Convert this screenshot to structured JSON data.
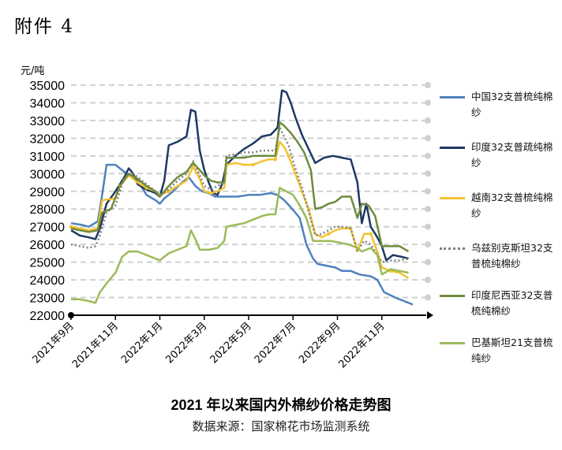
{
  "header": {
    "label": "附件 4"
  },
  "chart_data": {
    "type": "line",
    "title": "2021 年以来国内外棉纱价格走势图",
    "subtitle": "数据来源：国家棉花市场监测系统",
    "ylabel": "元/吨",
    "ylim": [
      22000,
      35000
    ],
    "yticks": [
      22000,
      23000,
      24000,
      25000,
      26000,
      27000,
      28000,
      29000,
      30000,
      31000,
      32000,
      33000,
      34000,
      35000
    ],
    "xlim": [
      0,
      16
    ],
    "xticks": [
      {
        "x": 0,
        "label": "2021年9月"
      },
      {
        "x": 2,
        "label": "2021年11月"
      },
      {
        "x": 4,
        "label": "2022年1月"
      },
      {
        "x": 6,
        "label": "2022年3月"
      },
      {
        "x": 8,
        "label": "2022年5月"
      },
      {
        "x": 10,
        "label": "2022年7月"
      },
      {
        "x": 12,
        "label": "2022年9月"
      },
      {
        "x": 14,
        "label": "2022年11月"
      }
    ],
    "grid": "horizontal-dashed",
    "legend_position": "right",
    "series": [
      {
        "name": "中国32支普梳纯棉纱",
        "color": "#4f81bd",
        "style": "solid",
        "points": [
          [
            0,
            27200
          ],
          [
            0.5,
            27100
          ],
          [
            0.8,
            27000
          ],
          [
            1.2,
            27300
          ],
          [
            1.4,
            28800
          ],
          [
            1.6,
            30500
          ],
          [
            2.0,
            30500
          ],
          [
            2.2,
            30300
          ],
          [
            2.6,
            29900
          ],
          [
            3.0,
            29600
          ],
          [
            3.4,
            28800
          ],
          [
            3.8,
            28500
          ],
          [
            4.0,
            28300
          ],
          [
            4.2,
            28600
          ],
          [
            4.6,
            29000
          ],
          [
            5.0,
            29500
          ],
          [
            5.3,
            29800
          ],
          [
            5.6,
            29300
          ],
          [
            5.9,
            29000
          ],
          [
            6.2,
            28900
          ],
          [
            6.5,
            28700
          ],
          [
            7.0,
            28700
          ],
          [
            7.5,
            28700
          ],
          [
            8.0,
            28800
          ],
          [
            8.5,
            28800
          ],
          [
            9.0,
            28900
          ],
          [
            9.3,
            28800
          ],
          [
            9.6,
            28500
          ],
          [
            9.9,
            28100
          ],
          [
            10.3,
            27500
          ],
          [
            10.6,
            26000
          ],
          [
            10.9,
            25200
          ],
          [
            11.1,
            24900
          ],
          [
            11.5,
            24800
          ],
          [
            11.9,
            24700
          ],
          [
            12.2,
            24500
          ],
          [
            12.6,
            24500
          ],
          [
            13.0,
            24300
          ],
          [
            13.5,
            24200
          ],
          [
            13.8,
            24000
          ],
          [
            14.1,
            23300
          ],
          [
            14.6,
            23000
          ],
          [
            15.0,
            22800
          ],
          [
            15.4,
            22600
          ]
        ]
      },
      {
        "name": "印度32支普疏纯棉纱",
        "color": "#1f3864",
        "style": "solid",
        "points": [
          [
            0,
            26800
          ],
          [
            0.4,
            26500
          ],
          [
            0.8,
            26400
          ],
          [
            1.1,
            26300
          ],
          [
            1.3,
            26900
          ],
          [
            1.6,
            28300
          ],
          [
            2.0,
            29000
          ],
          [
            2.4,
            29800
          ],
          [
            2.6,
            30300
          ],
          [
            2.8,
            30000
          ],
          [
            3.0,
            29400
          ],
          [
            3.4,
            29100
          ],
          [
            3.8,
            28900
          ],
          [
            4.0,
            28700
          ],
          [
            4.2,
            29600
          ],
          [
            4.4,
            31600
          ],
          [
            4.8,
            31800
          ],
          [
            5.2,
            32100
          ],
          [
            5.4,
            33600
          ],
          [
            5.6,
            33500
          ],
          [
            5.8,
            31300
          ],
          [
            6.0,
            30200
          ],
          [
            6.2,
            29500
          ],
          [
            6.4,
            28900
          ],
          [
            6.6,
            28800
          ],
          [
            6.8,
            29400
          ],
          [
            7.0,
            30500
          ],
          [
            7.4,
            31000
          ],
          [
            7.8,
            31400
          ],
          [
            8.2,
            31700
          ],
          [
            8.6,
            32100
          ],
          [
            9.0,
            32200
          ],
          [
            9.3,
            32600
          ],
          [
            9.5,
            34700
          ],
          [
            9.7,
            34600
          ],
          [
            9.9,
            34000
          ],
          [
            10.1,
            33200
          ],
          [
            10.4,
            32200
          ],
          [
            10.7,
            31400
          ],
          [
            11.0,
            30600
          ],
          [
            11.4,
            30900
          ],
          [
            11.8,
            31000
          ],
          [
            12.2,
            30900
          ],
          [
            12.6,
            30800
          ],
          [
            12.9,
            29500
          ],
          [
            13.1,
            27200
          ],
          [
            13.3,
            28300
          ],
          [
            13.5,
            27000
          ],
          [
            13.8,
            26400
          ],
          [
            14.0,
            25900
          ],
          [
            14.2,
            25100
          ],
          [
            14.5,
            25400
          ],
          [
            14.9,
            25300
          ],
          [
            15.2,
            25200
          ]
        ]
      },
      {
        "name": "越南32支普梳纯棉纱",
        "color": "#f1c232",
        "style": "solid-markers",
        "points": [
          [
            0,
            27000
          ],
          [
            0.4,
            26900
          ],
          [
            0.8,
            26800
          ],
          [
            1.2,
            26900
          ],
          [
            1.4,
            28500
          ],
          [
            2.0,
            28600
          ],
          [
            2.2,
            29300
          ],
          [
            2.6,
            29900
          ],
          [
            3.0,
            29500
          ],
          [
            3.4,
            29200
          ],
          [
            3.8,
            29000
          ],
          [
            4.0,
            28800
          ],
          [
            4.4,
            29000
          ],
          [
            4.8,
            29300
          ],
          [
            5.2,
            29600
          ],
          [
            5.5,
            30400
          ],
          [
            5.8,
            29700
          ],
          [
            6.0,
            29000
          ],
          [
            6.3,
            28900
          ],
          [
            6.6,
            29000
          ],
          [
            6.9,
            29200
          ],
          [
            7.0,
            30500
          ],
          [
            7.4,
            30600
          ],
          [
            7.8,
            30500
          ],
          [
            8.2,
            30500
          ],
          [
            8.6,
            30700
          ],
          [
            8.9,
            30800
          ],
          [
            9.2,
            30800
          ],
          [
            9.4,
            31800
          ],
          [
            9.6,
            31500
          ],
          [
            9.8,
            31000
          ],
          [
            10.1,
            30000
          ],
          [
            10.4,
            29000
          ],
          [
            10.7,
            28000
          ],
          [
            11.0,
            26600
          ],
          [
            11.3,
            26400
          ],
          [
            11.6,
            26600
          ],
          [
            11.9,
            26800
          ],
          [
            12.2,
            26900
          ],
          [
            12.6,
            26900
          ],
          [
            12.9,
            25600
          ],
          [
            13.2,
            26600
          ],
          [
            13.5,
            26600
          ],
          [
            13.8,
            25600
          ],
          [
            14.0,
            24700
          ],
          [
            14.4,
            24500
          ],
          [
            14.8,
            24400
          ],
          [
            15.2,
            24100
          ]
        ]
      },
      {
        "name": "乌兹别克斯坦32支普梳纯棉纱",
        "color": "#7f7f7f",
        "style": "dotted",
        "points": [
          [
            0,
            26000
          ],
          [
            0.4,
            25900
          ],
          [
            0.8,
            25800
          ],
          [
            1.1,
            25900
          ],
          [
            1.3,
            26500
          ],
          [
            1.6,
            27800
          ],
          [
            2.0,
            28200
          ],
          [
            2.4,
            29800
          ],
          [
            2.8,
            30000
          ],
          [
            3.2,
            29600
          ],
          [
            3.6,
            29200
          ],
          [
            4.0,
            28800
          ],
          [
            4.4,
            29100
          ],
          [
            4.8,
            29600
          ],
          [
            5.2,
            30000
          ],
          [
            5.5,
            30700
          ],
          [
            5.8,
            29900
          ],
          [
            6.0,
            29300
          ],
          [
            6.3,
            29100
          ],
          [
            6.6,
            29300
          ],
          [
            6.9,
            29500
          ],
          [
            7.0,
            31000
          ],
          [
            7.4,
            31100
          ],
          [
            7.8,
            31200
          ],
          [
            8.2,
            31200
          ],
          [
            8.6,
            31300
          ],
          [
            8.9,
            31300
          ],
          [
            9.2,
            31300
          ],
          [
            9.4,
            32600
          ],
          [
            9.6,
            32100
          ],
          [
            9.8,
            31600
          ],
          [
            10.1,
            30300
          ],
          [
            10.4,
            29200
          ],
          [
            10.7,
            27900
          ],
          [
            11.0,
            26500
          ],
          [
            11.3,
            26600
          ],
          [
            11.6,
            26800
          ],
          [
            11.9,
            27000
          ],
          [
            12.2,
            27000
          ],
          [
            12.6,
            26900
          ],
          [
            12.9,
            25600
          ],
          [
            13.2,
            26200
          ],
          [
            13.5,
            26000
          ],
          [
            13.8,
            25400
          ],
          [
            14.0,
            25000
          ],
          [
            14.4,
            25100
          ],
          [
            14.8,
            25100
          ],
          [
            15.2,
            25200
          ]
        ]
      },
      {
        "name": "印度尼西亚32支普梳纯棉纱",
        "color": "#6e8b3d",
        "style": "solid",
        "points": [
          [
            0,
            26900
          ],
          [
            0.4,
            26800
          ],
          [
            0.8,
            26700
          ],
          [
            1.2,
            26800
          ],
          [
            1.4,
            27800
          ],
          [
            1.8,
            28000
          ],
          [
            2.2,
            29300
          ],
          [
            2.6,
            30000
          ],
          [
            3.0,
            29700
          ],
          [
            3.4,
            29300
          ],
          [
            3.8,
            29000
          ],
          [
            4.0,
            28700
          ],
          [
            4.4,
            29300
          ],
          [
            4.8,
            29800
          ],
          [
            5.2,
            30100
          ],
          [
            5.5,
            30600
          ],
          [
            5.8,
            30200
          ],
          [
            6.0,
            29900
          ],
          [
            6.3,
            29600
          ],
          [
            6.6,
            29500
          ],
          [
            6.9,
            29500
          ],
          [
            7.0,
            30900
          ],
          [
            7.4,
            30900
          ],
          [
            7.8,
            30900
          ],
          [
            8.2,
            31000
          ],
          [
            8.6,
            31000
          ],
          [
            8.9,
            31000
          ],
          [
            9.2,
            31000
          ],
          [
            9.4,
            32900
          ],
          [
            9.6,
            32700
          ],
          [
            9.9,
            32300
          ],
          [
            10.2,
            31800
          ],
          [
            10.5,
            31200
          ],
          [
            10.8,
            30200
          ],
          [
            11.0,
            28000
          ],
          [
            11.3,
            28100
          ],
          [
            11.6,
            28300
          ],
          [
            11.9,
            28400
          ],
          [
            12.2,
            28700
          ],
          [
            12.6,
            28700
          ],
          [
            12.9,
            27500
          ],
          [
            13.1,
            28300
          ],
          [
            13.4,
            28200
          ],
          [
            13.7,
            27600
          ],
          [
            14.0,
            25900
          ],
          [
            14.4,
            25900
          ],
          [
            14.8,
            25900
          ],
          [
            15.2,
            25600
          ]
        ]
      },
      {
        "name": "巴基斯坦21支普梳纯纱",
        "color": "#9bbb59",
        "style": "solid",
        "points": [
          [
            0,
            22900
          ],
          [
            0.4,
            22900
          ],
          [
            0.8,
            22800
          ],
          [
            1.1,
            22700
          ],
          [
            1.3,
            23300
          ],
          [
            1.6,
            23800
          ],
          [
            2.0,
            24400
          ],
          [
            2.3,
            25300
          ],
          [
            2.6,
            25600
          ],
          [
            3.0,
            25600
          ],
          [
            3.4,
            25400
          ],
          [
            3.8,
            25200
          ],
          [
            4.0,
            25100
          ],
          [
            4.4,
            25500
          ],
          [
            4.8,
            25700
          ],
          [
            5.2,
            25900
          ],
          [
            5.4,
            26800
          ],
          [
            5.6,
            26300
          ],
          [
            5.8,
            25700
          ],
          [
            6.2,
            25700
          ],
          [
            6.6,
            25800
          ],
          [
            6.9,
            26200
          ],
          [
            7.0,
            27000
          ],
          [
            7.4,
            27100
          ],
          [
            7.8,
            27200
          ],
          [
            8.2,
            27400
          ],
          [
            8.6,
            27600
          ],
          [
            8.9,
            27700
          ],
          [
            9.2,
            27700
          ],
          [
            9.4,
            29200
          ],
          [
            9.7,
            29000
          ],
          [
            10.0,
            28800
          ],
          [
            10.3,
            28200
          ],
          [
            10.6,
            27500
          ],
          [
            10.9,
            26200
          ],
          [
            11.3,
            26200
          ],
          [
            11.7,
            26200
          ],
          [
            12.1,
            26100
          ],
          [
            12.5,
            26000
          ],
          [
            12.9,
            25800
          ],
          [
            13.1,
            25600
          ],
          [
            13.5,
            25800
          ],
          [
            13.8,
            25400
          ],
          [
            14.0,
            24300
          ],
          [
            14.4,
            24600
          ],
          [
            14.8,
            24500
          ],
          [
            15.2,
            24400
          ]
        ]
      }
    ]
  }
}
